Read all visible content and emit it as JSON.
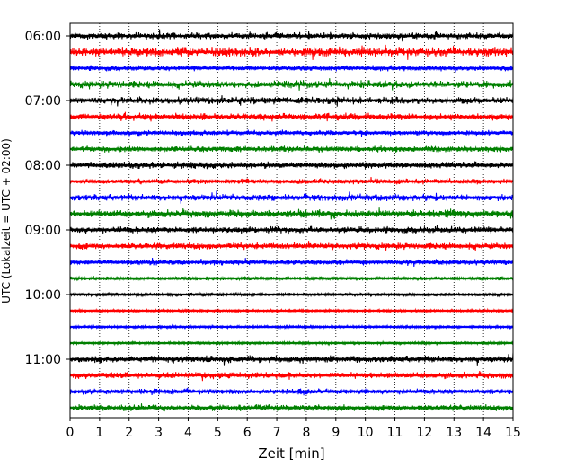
{
  "chart_data": {
    "type": "line",
    "title": "",
    "xlabel": "Zeit  [min]",
    "ylabel": "UTC (Lokalzeit = UTC + 02:00)",
    "xlim": [
      0,
      15
    ],
    "x_ticks": [
      "0",
      "1",
      "2",
      "3",
      "4",
      "5",
      "6",
      "7",
      "8",
      "9",
      "10",
      "11",
      "12",
      "13",
      "14",
      "15"
    ],
    "y_ticks": [
      "06:00",
      "07:00",
      "08:00",
      "09:00",
      "10:00",
      "11:00"
    ],
    "grid": {
      "x": true,
      "y": false
    },
    "trace_colors": [
      "#000000",
      "#ff0000",
      "#0000ff",
      "#008000"
    ],
    "traces": [
      {
        "start": "06:00",
        "color": "#000000",
        "level": 0.6
      },
      {
        "start": "06:15",
        "color": "#ff0000",
        "level": 0.9
      },
      {
        "start": "06:30",
        "color": "#0000ff",
        "level": 0.45
      },
      {
        "start": "06:45",
        "color": "#008000",
        "level": 0.7
      },
      {
        "start": "07:00",
        "color": "#000000",
        "level": 0.65
      },
      {
        "start": "07:15",
        "color": "#ff0000",
        "level": 0.6
      },
      {
        "start": "07:30",
        "color": "#0000ff",
        "level": 0.45
      },
      {
        "start": "07:45",
        "color": "#008000",
        "level": 0.55
      },
      {
        "start": "08:00",
        "color": "#000000",
        "level": 0.6
      },
      {
        "start": "08:15",
        "color": "#ff0000",
        "level": 0.4
      },
      {
        "start": "08:30",
        "color": "#0000ff",
        "level": 0.6
      },
      {
        "start": "08:45",
        "color": "#008000",
        "level": 0.7
      },
      {
        "start": "09:00",
        "color": "#000000",
        "level": 0.6
      },
      {
        "start": "09:15",
        "color": "#ff0000",
        "level": 0.6
      },
      {
        "start": "09:30",
        "color": "#0000ff",
        "level": 0.45
      },
      {
        "start": "09:45",
        "color": "#008000",
        "level": 0.2
      },
      {
        "start": "10:00",
        "color": "#000000",
        "level": 0.15
      },
      {
        "start": "10:15",
        "color": "#ff0000",
        "level": 0.1
      },
      {
        "start": "10:30",
        "color": "#0000ff",
        "level": 0.1
      },
      {
        "start": "10:45",
        "color": "#008000",
        "level": 0.1
      },
      {
        "start": "11:00",
        "color": "#000000",
        "level": 0.6
      },
      {
        "start": "11:15",
        "color": "#ff0000",
        "level": 0.55
      },
      {
        "start": "11:30",
        "color": "#0000ff",
        "level": 0.45
      },
      {
        "start": "11:45",
        "color": "#008000",
        "level": 0.55
      }
    ]
  }
}
